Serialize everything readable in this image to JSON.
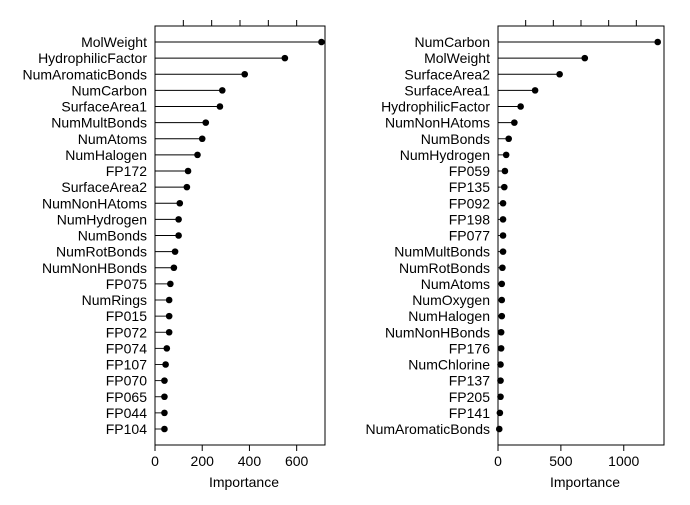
{
  "chart_data": [
    {
      "type": "dot",
      "xlabel": "Importance",
      "xlim": [
        0,
        720
      ],
      "xticks": [
        0,
        200,
        400,
        600
      ],
      "grid": false,
      "categories": [
        "MolWeight",
        "HydrophilicFactor",
        "NumAromaticBonds",
        "NumCarbon",
        "SurfaceArea1",
        "NumMultBonds",
        "NumAtoms",
        "NumHalogen",
        "FP172",
        "SurfaceArea2",
        "NumNonHAtoms",
        "NumHydrogen",
        "NumBonds",
        "NumRotBonds",
        "NumNonHBonds",
        "FP075",
        "NumRings",
        "FP015",
        "FP072",
        "FP074",
        "FP107",
        "FP070",
        "FP065",
        "FP044",
        "FP104"
      ],
      "values": [
        705,
        550,
        380,
        285,
        275,
        215,
        200,
        180,
        140,
        135,
        105,
        100,
        100,
        85,
        80,
        65,
        60,
        60,
        60,
        50,
        45,
        40,
        40,
        40,
        40
      ]
    },
    {
      "type": "dot",
      "xlabel": "Importance",
      "xlim": [
        0,
        1320
      ],
      "xticks": [
        0,
        500,
        1000
      ],
      "grid": false,
      "categories": [
        "NumCarbon",
        "MolWeight",
        "SurfaceArea2",
        "SurfaceArea1",
        "HydrophilicFactor",
        "NumNonHAtoms",
        "NumBonds",
        "NumHydrogen",
        "FP059",
        "FP135",
        "FP092",
        "FP198",
        "FP077",
        "NumMultBonds",
        "NumRotBonds",
        "NumAtoms",
        "NumOxygen",
        "NumHalogen",
        "NumNonHBonds",
        "FP176",
        "NumChlorine",
        "FP137",
        "FP205",
        "FP141",
        "NumAromaticBonds"
      ],
      "values": [
        1270,
        690,
        490,
        295,
        180,
        130,
        85,
        65,
        55,
        50,
        40,
        40,
        40,
        40,
        35,
        30,
        30,
        30,
        25,
        25,
        20,
        20,
        20,
        15,
        10
      ]
    }
  ]
}
